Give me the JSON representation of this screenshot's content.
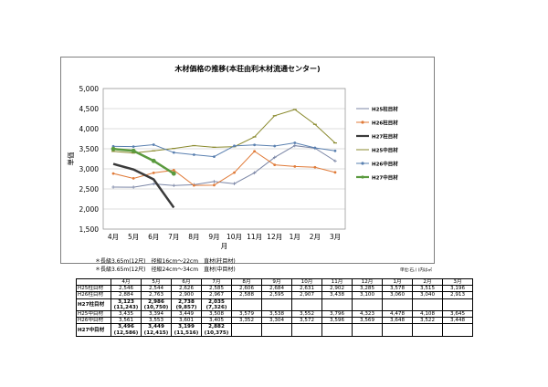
{
  "chart_data": {
    "type": "line",
    "title": "木材価格の推移(本荘由利木材流通センター)",
    "xlabel": "月",
    "ylabel": "単価",
    "categories": [
      "4月",
      "5月",
      "6月",
      "7月",
      "8月",
      "9月",
      "10月",
      "11月",
      "12月",
      "1月",
      "2月",
      "3月"
    ],
    "ylim": [
      1500,
      5000
    ],
    "yticks": [
      "1,500",
      "2,000",
      "2,500",
      "3,000",
      "3,500",
      "4,000",
      "4,500",
      "5,000"
    ],
    "grid": true,
    "legend_position": "right",
    "series": [
      {
        "name": "H25柱目材",
        "color": "#7b86a6",
        "marker": "cross",
        "width": 1,
        "values": [
          2546,
          2544,
          2626,
          2585,
          2606,
          2684,
          2631,
          2902,
          3285,
          3578,
          3515,
          3196
        ]
      },
      {
        "name": "H26柱目材",
        "color": "#e07b39",
        "marker": "dot",
        "width": 1,
        "values": [
          2884,
          2763,
          2900,
          2967,
          2588,
          2595,
          2907,
          3438,
          3100,
          3060,
          3040,
          2913
        ]
      },
      {
        "name": "H27柱目材",
        "color": "#3a3a3a",
        "marker": "none",
        "width": 2.5,
        "values": [
          3123,
          2986,
          2738,
          2035,
          null,
          null,
          null,
          null,
          null,
          null,
          null,
          null
        ]
      },
      {
        "name": "H25中目材",
        "color": "#8a8a2e",
        "marker": "dash",
        "width": 1,
        "values": [
          3435,
          3394,
          3449,
          3508,
          3579,
          3538,
          3552,
          3796,
          4323,
          4478,
          4108,
          3645
        ]
      },
      {
        "name": "H26中目材",
        "color": "#5a80b0",
        "marker": "dot",
        "width": 1,
        "values": [
          3561,
          3553,
          3601,
          3405,
          3352,
          3304,
          3572,
          3596,
          3569,
          3648,
          3522,
          3448
        ]
      },
      {
        "name": "H27中目材",
        "color": "#5a9a3e",
        "marker": "dot",
        "width": 2.5,
        "values": [
          3496,
          3449,
          3199,
          2882,
          null,
          null,
          null,
          null,
          null,
          null,
          null,
          null
        ]
      }
    ]
  },
  "notes": [
    "＊長級3.65m(12尺)　径級16cm～22cm　直材(柱目材)",
    "＊長級3.65m(12尺)　径級24cm～34cm　直材(中目材)"
  ],
  "unit_note": "単位:石,( )内は㎥",
  "table": {
    "months": [
      "4月",
      "5月",
      "6月",
      "7月",
      "8月",
      "9月",
      "10月",
      "11月",
      "12月",
      "1月",
      "2月",
      "3月"
    ],
    "rows": [
      {
        "label": "H25柱目材",
        "bold": false,
        "cells": [
          "2,546",
          "2,544",
          "2,626",
          "2,585",
          "2,606",
          "2,684",
          "2,631",
          "2,902",
          "3,285",
          "3,578",
          "3,515",
          "3,196"
        ]
      },
      {
        "label": "H26柱目材",
        "bold": false,
        "cells": [
          "2,884",
          "2,763",
          "2,900",
          "2,967",
          "2,588",
          "2,595",
          "2,907",
          "3,438",
          "3,100",
          "3,060",
          "3,040",
          "2,913"
        ]
      },
      {
        "label": "H27柱目材",
        "bold": true,
        "cells": [
          "3,123",
          "2,986",
          "2,738",
          "2,035",
          "",
          "",
          "",
          "",
          "",
          "",
          "",
          ""
        ],
        "sub": [
          "(11,243)",
          "(10,750)",
          "(9,857)",
          "(7,326)",
          "",
          "",
          "",
          "",
          "",
          "",
          "",
          ""
        ]
      },
      {
        "label": "H25中目材",
        "bold": false,
        "cells": [
          "3,435",
          "3,394",
          "3,449",
          "3,508",
          "3,579",
          "3,538",
          "3,552",
          "3,796",
          "4,323",
          "4,478",
          "4,108",
          "3,645"
        ]
      },
      {
        "label": "H26中目材",
        "bold": false,
        "cells": [
          "3,561",
          "3,553",
          "3,601",
          "3,405",
          "3,352",
          "3,304",
          "3,572",
          "3,596",
          "3,569",
          "3,648",
          "3,522",
          "3,448"
        ]
      },
      {
        "label": "H27中目材",
        "bold": true,
        "cells": [
          "3,496",
          "3,449",
          "3,199",
          "2,882",
          "",
          "",
          "",
          "",
          "",
          "",
          "",
          ""
        ],
        "sub": [
          "(12,586)",
          "(12,415)",
          "(11,516)",
          "(10,375)",
          "",
          "",
          "",
          "",
          "",
          "",
          "",
          ""
        ]
      }
    ]
  }
}
